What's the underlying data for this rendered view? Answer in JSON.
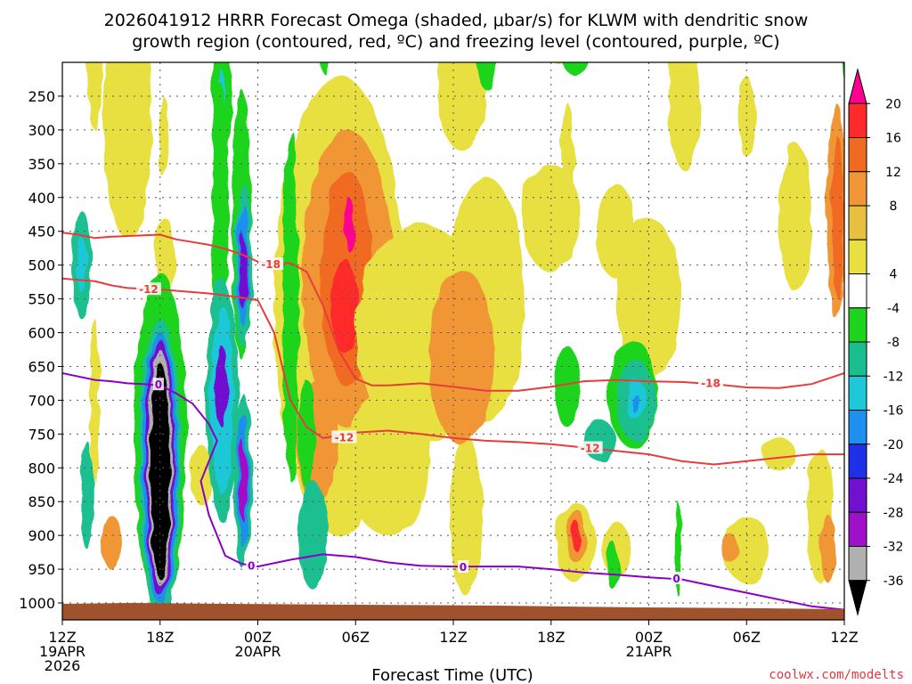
{
  "chart_data": {
    "type": "heatmap",
    "title_line1": "2026041912 HRRR Forecast Omega (shaded, μbar/s) for KLWM with dendritic snow",
    "title_line2": "growth region (contoured, red, ºC) and freezing level (contoured, purple, ºC)",
    "xlabel": "Forecast Time (UTC)",
    "ylabel": "",
    "credit": "coolwx.com/modelts",
    "x_range_hours": [
      0,
      48
    ],
    "x_ticks": [
      {
        "hour": 0,
        "label": "12Z",
        "date": "19APR",
        "year": "2026"
      },
      {
        "hour": 6,
        "label": "18Z",
        "date": "",
        "year": ""
      },
      {
        "hour": 12,
        "label": "00Z",
        "date": "20APR",
        "year": ""
      },
      {
        "hour": 18,
        "label": "06Z",
        "date": "",
        "year": ""
      },
      {
        "hour": 24,
        "label": "12Z",
        "date": "",
        "year": ""
      },
      {
        "hour": 30,
        "label": "18Z",
        "date": "",
        "year": ""
      },
      {
        "hour": 36,
        "label": "00Z",
        "date": "21APR",
        "year": ""
      },
      {
        "hour": 42,
        "label": "06Z",
        "date": "",
        "year": ""
      },
      {
        "hour": 48,
        "label": "12Z",
        "date": "",
        "year": ""
      }
    ],
    "y_range_mb": [
      200,
      1025
    ],
    "y_ticks": [
      250,
      300,
      350,
      400,
      450,
      500,
      550,
      600,
      650,
      700,
      750,
      800,
      850,
      900,
      950,
      1000
    ],
    "colorbar": {
      "labels": [
        "20",
        "16",
        "12",
        "8",
        "4",
        "-4",
        "-8",
        "-12",
        "-16",
        "-20",
        "-24",
        "-28",
        "-32",
        "-36"
      ],
      "bins": [
        {
          "color": "#ff0090"
        },
        {
          "color": "#ff2a2a"
        },
        {
          "color": "#f06a22"
        },
        {
          "color": "#f09636"
        },
        {
          "color": "#e8c040"
        },
        {
          "color": "#e8e040"
        },
        {
          "color": "#ffffff"
        },
        {
          "color": "#1ed41e"
        },
        {
          "color": "#1abf8f"
        },
        {
          "color": "#1ec8d8"
        },
        {
          "color": "#1e90f0"
        },
        {
          "color": "#2030e8"
        },
        {
          "color": "#7010d0"
        },
        {
          "color": "#a010c8"
        },
        {
          "color": "#b0b0b0"
        },
        {
          "color": "#000000"
        }
      ]
    },
    "contours": [
      {
        "name": "-18C dendritic",
        "color": "#e83c3c",
        "label": "-18",
        "points": [
          [
            0,
            452
          ],
          [
            1,
            455
          ],
          [
            2,
            460
          ],
          [
            3,
            458
          ],
          [
            4,
            457
          ],
          [
            5,
            456
          ],
          [
            6,
            455
          ],
          [
            7,
            462
          ],
          [
            8,
            466
          ],
          [
            9,
            470
          ],
          [
            10,
            476
          ],
          [
            11,
            484
          ],
          [
            12,
            495
          ],
          [
            13,
            497
          ],
          [
            14,
            497
          ],
          [
            15,
            510
          ],
          [
            16,
            560
          ],
          [
            17,
            628
          ],
          [
            18,
            668
          ],
          [
            19,
            678
          ],
          [
            20,
            678
          ],
          [
            22,
            675
          ],
          [
            24,
            680
          ],
          [
            26,
            686
          ],
          [
            28,
            686
          ],
          [
            30,
            680
          ],
          [
            32,
            672
          ],
          [
            34,
            670
          ],
          [
            36,
            672
          ],
          [
            38,
            673
          ],
          [
            40,
            676
          ],
          [
            42,
            681
          ],
          [
            44,
            682
          ],
          [
            46,
            676
          ],
          [
            48,
            660
          ]
        ]
      },
      {
        "name": "-12C dendritic",
        "color": "#e83c3c",
        "label": "-12",
        "points": [
          [
            0,
            520
          ],
          [
            1,
            522
          ],
          [
            2,
            524
          ],
          [
            3,
            530
          ],
          [
            4,
            534
          ],
          [
            5,
            535
          ],
          [
            6,
            536
          ],
          [
            7,
            538
          ],
          [
            8,
            540
          ],
          [
            9,
            542
          ],
          [
            10,
            545
          ],
          [
            11,
            548
          ],
          [
            12,
            552
          ],
          [
            13,
            600
          ],
          [
            13.5,
            650
          ],
          [
            14,
            700
          ],
          [
            15,
            740
          ],
          [
            16,
            756
          ],
          [
            17,
            752
          ],
          [
            18,
            748
          ],
          [
            20,
            745
          ],
          [
            22,
            750
          ],
          [
            24,
            756
          ],
          [
            26,
            760
          ],
          [
            28,
            762
          ],
          [
            30,
            765
          ],
          [
            32,
            770
          ],
          [
            34,
            775
          ],
          [
            36,
            780
          ],
          [
            38,
            790
          ],
          [
            40,
            795
          ],
          [
            42,
            790
          ],
          [
            44,
            785
          ],
          [
            46,
            780
          ],
          [
            48,
            780
          ]
        ]
      },
      {
        "name": "0C freezing level",
        "color": "#8b00c8",
        "label": "0",
        "points": [
          [
            0,
            660
          ],
          [
            1,
            665
          ],
          [
            2,
            670
          ],
          [
            3,
            672
          ],
          [
            4,
            675
          ],
          [
            5,
            676
          ],
          [
            6,
            678
          ],
          [
            7,
            690
          ],
          [
            8,
            705
          ],
          [
            9,
            735
          ],
          [
            9.5,
            760
          ],
          [
            8.5,
            820
          ],
          [
            9,
            870
          ],
          [
            10,
            930
          ],
          [
            11,
            942
          ],
          [
            12,
            946
          ],
          [
            14,
            936
          ],
          [
            16,
            928
          ],
          [
            18,
            932
          ],
          [
            20,
            940
          ],
          [
            22,
            945
          ],
          [
            24,
            946
          ],
          [
            26,
            946
          ],
          [
            28,
            946
          ],
          [
            30,
            950
          ],
          [
            32,
            955
          ],
          [
            34,
            958
          ],
          [
            36,
            962
          ],
          [
            38,
            965
          ],
          [
            40,
            975
          ],
          [
            42,
            985
          ],
          [
            44,
            995
          ],
          [
            46,
            1005
          ],
          [
            48,
            1010
          ]
        ]
      }
    ],
    "contour_labels": [
      {
        "text": "-18",
        "hour": 12.8,
        "mb": 498,
        "color": "#e83c3c"
      },
      {
        "text": "-12",
        "hour": 5.3,
        "mb": 535,
        "color": "#e83c3c"
      },
      {
        "text": "-12",
        "hour": 17.3,
        "mb": 754,
        "color": "#e83c3c"
      },
      {
        "text": "-12",
        "hour": 32.4,
        "mb": 770,
        "color": "#e83c3c"
      },
      {
        "text": "-18",
        "hour": 39.8,
        "mb": 674,
        "color": "#e83c3c"
      },
      {
        "text": "0",
        "hour": 5.9,
        "mb": 676,
        "color": "#8b00c8"
      },
      {
        "text": "0",
        "hour": 11.6,
        "mb": 944,
        "color": "#8b00c8"
      },
      {
        "text": "0",
        "hour": 24.6,
        "mb": 946,
        "color": "#8b00c8"
      },
      {
        "text": "0",
        "hour": 37.7,
        "mb": 963,
        "color": "#8b00c8"
      }
    ],
    "omega_cells": [
      {
        "hour": 4.0,
        "mb": 285,
        "rh": 0.8,
        "rp": 110,
        "value": 20
      },
      {
        "hour": 4.0,
        "mb": 285,
        "rh": 1.2,
        "rp": 150,
        "value": 12
      },
      {
        "hour": 4.0,
        "mb": 285,
        "rh": 1.5,
        "rp": 175,
        "value": 4
      },
      {
        "hour": 2.0,
        "mb": 190,
        "rh": 0.5,
        "rp": 110,
        "value": 4
      },
      {
        "hour": 6.3,
        "mb": 490,
        "rh": 0.6,
        "rp": 60,
        "value": 4
      },
      {
        "hour": 6.2,
        "mb": 310,
        "rh": 0.3,
        "rp": 60,
        "value": 4
      },
      {
        "hour": 1.2,
        "mb": 500,
        "rh": 0.6,
        "rp": 80,
        "value": -8
      },
      {
        "hour": 1.2,
        "mb": 500,
        "rh": 0.3,
        "rp": 40,
        "value": -12
      },
      {
        "hour": 6.0,
        "mb": 760,
        "rh": 1.6,
        "rp": 250,
        "value": -4
      },
      {
        "hour": 6.0,
        "mb": 800,
        "rh": 1.3,
        "rp": 220,
        "value": -8
      },
      {
        "hour": 6.0,
        "mb": 800,
        "rh": 1.1,
        "rp": 200,
        "value": -16
      },
      {
        "hour": 6.0,
        "mb": 800,
        "rh": 0.9,
        "rp": 190,
        "value": -24
      },
      {
        "hour": 6.0,
        "mb": 800,
        "rh": 0.75,
        "rp": 175,
        "value": -32
      },
      {
        "hour": 6.0,
        "mb": 805,
        "rh": 0.6,
        "rp": 160,
        "value": -36
      },
      {
        "hour": 9.8,
        "mb": 250,
        "rh": 0.6,
        "rp": 110,
        "value": -4
      },
      {
        "hour": 9.8,
        "mb": 250,
        "rh": 0.2,
        "rp": 40,
        "value": -12
      },
      {
        "hour": 11.0,
        "mb": 440,
        "rh": 0.6,
        "rp": 200,
        "value": -4
      },
      {
        "hour": 9.7,
        "mb": 430,
        "rh": 0.5,
        "rp": 200,
        "value": -4
      },
      {
        "hour": 9.8,
        "mb": 700,
        "rh": 1.0,
        "rp": 180,
        "value": -8
      },
      {
        "hour": 9.8,
        "mb": 700,
        "rh": 0.7,
        "rp": 140,
        "value": -12
      },
      {
        "hour": 9.8,
        "mb": 680,
        "rh": 0.35,
        "rp": 60,
        "value": -24
      },
      {
        "hour": 11.1,
        "mb": 500,
        "rh": 0.55,
        "rp": 120,
        "value": -8
      },
      {
        "hour": 11.1,
        "mb": 500,
        "rh": 0.35,
        "rp": 90,
        "value": -16
      },
      {
        "hour": 11.1,
        "mb": 510,
        "rh": 0.25,
        "rp": 55,
        "value": -24
      },
      {
        "hour": 11.1,
        "mb": 820,
        "rh": 0.55,
        "rp": 130,
        "value": -8
      },
      {
        "hour": 11.1,
        "mb": 820,
        "rh": 0.35,
        "rp": 100,
        "value": -16
      },
      {
        "hour": 11.1,
        "mb": 820,
        "rh": 0.22,
        "rp": 60,
        "value": -28
      },
      {
        "hour": 8.5,
        "mb": 810,
        "rh": 0.6,
        "rp": 45,
        "value": 4
      },
      {
        "hour": 3.0,
        "mb": 910,
        "rh": 0.6,
        "rp": 40,
        "value": 8
      },
      {
        "hour": 1.5,
        "mb": 840,
        "rh": 0.4,
        "rp": 80,
        "value": -8
      },
      {
        "hour": 2.0,
        "mb": 700,
        "rh": 0.3,
        "rp": 120,
        "value": 4
      },
      {
        "hour": 17.0,
        "mb": 560,
        "rh": 4.0,
        "rp": 340,
        "value": 4
      },
      {
        "hour": 17.5,
        "mb": 520,
        "rh": 2.8,
        "rp": 220,
        "value": 8
      },
      {
        "hour": 17.5,
        "mb": 520,
        "rh": 1.6,
        "rp": 160,
        "value": 12
      },
      {
        "hour": 17.3,
        "mb": 560,
        "rh": 0.8,
        "rp": 70,
        "value": 16
      },
      {
        "hour": 17.6,
        "mb": 440,
        "rh": 0.3,
        "rp": 40,
        "value": 20
      },
      {
        "hour": 15.6,
        "mb": 760,
        "rh": 1.3,
        "rp": 90,
        "value": 8
      },
      {
        "hour": 16.2,
        "mb": 140,
        "rh": 0.4,
        "rp": 80,
        "value": -4
      },
      {
        "hour": 22.0,
        "mb": 600,
        "rh": 4.0,
        "rp": 160,
        "value": 4
      },
      {
        "hour": 24.5,
        "mb": 240,
        "rh": 1.5,
        "rp": 90,
        "value": 4
      },
      {
        "hour": 24.8,
        "mb": 870,
        "rh": 1.0,
        "rp": 120,
        "value": 4
      },
      {
        "hour": 26.0,
        "mb": 550,
        "rh": 2.4,
        "rp": 180,
        "value": 4
      },
      {
        "hour": 30.0,
        "mb": 430,
        "rh": 1.8,
        "rp": 80,
        "value": 4
      },
      {
        "hour": 31.0,
        "mb": 340,
        "rh": 0.4,
        "rp": 80,
        "value": 4
      },
      {
        "hour": 30.5,
        "mb": 165,
        "rh": 0.6,
        "rp": 40,
        "value": 4
      },
      {
        "hour": 34.8,
        "mb": 580,
        "rh": 0.6,
        "rp": 60,
        "value": 4
      },
      {
        "hour": 38.0,
        "mb": 150,
        "rh": 1.0,
        "rp": 120,
        "value": 4
      },
      {
        "hour": 38.2,
        "mb": 260,
        "rh": 1.0,
        "rp": 100,
        "value": 4
      },
      {
        "hour": 36.0,
        "mb": 550,
        "rh": 2.0,
        "rp": 120,
        "value": 4
      },
      {
        "hour": 34.0,
        "mb": 450,
        "rh": 1.2,
        "rp": 70,
        "value": 4
      },
      {
        "hour": 42.0,
        "mb": 280,
        "rh": 0.5,
        "rp": 60,
        "value": 4
      },
      {
        "hour": 45.0,
        "mb": 430,
        "rh": 1.0,
        "rp": 110,
        "value": 4
      },
      {
        "hour": 47.5,
        "mb": 420,
        "rh": 0.6,
        "rp": 160,
        "value": 8
      },
      {
        "hour": 47.6,
        "mb": 430,
        "rh": 0.35,
        "rp": 120,
        "value": 12
      },
      {
        "hour": 31.5,
        "mb": 910,
        "rh": 1.2,
        "rp": 60,
        "value": 4
      },
      {
        "hour": 31.5,
        "mb": 900,
        "rh": 0.6,
        "rp": 40,
        "value": 8
      },
      {
        "hour": 31.5,
        "mb": 900,
        "rh": 0.3,
        "rp": 22,
        "value": 16
      },
      {
        "hour": 34.0,
        "mb": 920,
        "rh": 0.9,
        "rp": 40,
        "value": 4
      },
      {
        "hour": 42.0,
        "mb": 920,
        "rh": 1.4,
        "rp": 50,
        "value": 4
      },
      {
        "hour": 41.0,
        "mb": 920,
        "rh": 0.5,
        "rp": 22,
        "value": 8
      },
      {
        "hour": 46.5,
        "mb": 870,
        "rh": 0.8,
        "rp": 100,
        "value": 4
      },
      {
        "hour": 47.0,
        "mb": 920,
        "rh": 0.5,
        "rp": 50,
        "value": 8
      },
      {
        "hour": 44.0,
        "mb": 780,
        "rh": 1.0,
        "rp": 25,
        "value": 4
      },
      {
        "hour": 24.5,
        "mb": 635,
        "rh": 2.0,
        "rp": 130,
        "value": 8
      },
      {
        "hour": 14.0,
        "mb": 560,
        "rh": 0.5,
        "rp": 260,
        "value": -4
      },
      {
        "hour": 15.0,
        "mb": 750,
        "rh": 0.6,
        "rp": 80,
        "value": -4
      },
      {
        "hour": 20.0,
        "mb": 790,
        "rh": 2.6,
        "rp": 110,
        "value": 4
      },
      {
        "hour": 15.4,
        "mb": 900,
        "rh": 0.9,
        "rp": 80,
        "value": -8
      },
      {
        "hour": 26.0,
        "mb": 180,
        "rh": 0.6,
        "rp": 60,
        "value": -4
      },
      {
        "hour": 31.5,
        "mb": 170,
        "rh": 1.0,
        "rp": 50,
        "value": -4
      },
      {
        "hour": 35.0,
        "mb": 690,
        "rh": 1.5,
        "rp": 80,
        "value": -4
      },
      {
        "hour": 35.2,
        "mb": 700,
        "rh": 1.2,
        "rp": 60,
        "value": -8
      },
      {
        "hour": 35.2,
        "mb": 700,
        "rh": 0.6,
        "rp": 30,
        "value": -12
      },
      {
        "hour": 35.2,
        "mb": 705,
        "rh": 0.2,
        "rp": 15,
        "value": -16
      },
      {
        "hour": 31.0,
        "mb": 680,
        "rh": 0.8,
        "rp": 60,
        "value": -4
      },
      {
        "hour": 33.0,
        "mb": 760,
        "rh": 1.0,
        "rp": 30,
        "value": -8
      },
      {
        "hour": 33.8,
        "mb": 945,
        "rh": 0.4,
        "rp": 35,
        "value": -4
      },
      {
        "hour": 37.8,
        "mb": 920,
        "rh": 0.2,
        "rp": 70,
        "value": -4
      },
      {
        "hour": 48.0,
        "mb": 190,
        "rh": 0.2,
        "rp": 40,
        "value": -4
      }
    ]
  }
}
